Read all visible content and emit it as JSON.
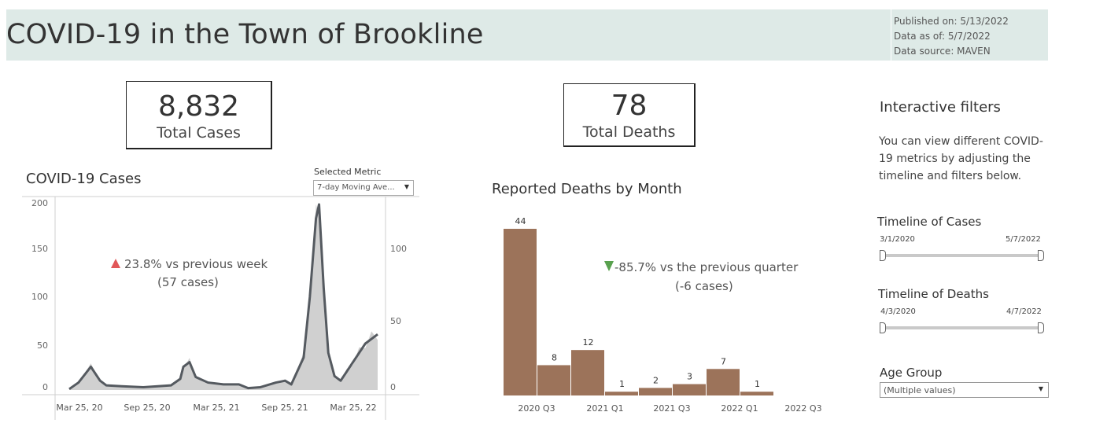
{
  "header": {
    "title": "COVID-19 in the Town of Brookline",
    "published": "Published  on:  5/13/2022",
    "data_as_of": "Data as of: 5/7/2022",
    "data_source": "Data source: MAVEN"
  },
  "kpis": {
    "cases_value": "8,832",
    "cases_label": "Total Cases",
    "deaths_value": "78",
    "deaths_label": "Total Deaths"
  },
  "cases_section": {
    "title": "COVID-19 Cases",
    "metric_label": "Selected Metric",
    "metric_value": "7-day Moving Ave...",
    "annotation_line1": "23.8% vs previous week",
    "annotation_line2": "(57 cases)",
    "annotation_color": "#e15759",
    "left_ticks": [
      "200",
      "150",
      "100",
      "50",
      "0"
    ],
    "right_ticks": [
      "100",
      "50",
      "0"
    ],
    "x_ticks": [
      "Mar 25, 20",
      "Sep 25, 20",
      "Mar 25, 21",
      "Sep 25, 21",
      "Mar 25, 22"
    ]
  },
  "deaths_section": {
    "title": "Reported Deaths by Month",
    "annotation_line1": "-85.7%   vs the previous quarter",
    "annotation_line2": "(-6 cases)",
    "annotation_color": "#59a14f",
    "x_ticks": [
      "2020 Q3",
      "2021 Q1",
      "2021 Q3",
      "2022 Q1",
      "2022 Q3"
    ]
  },
  "filters": {
    "title": "Interactive filters",
    "description": "You can view different COVID-19 metrics by adjusting the timeline and filters below.",
    "cases_timeline": {
      "label": "Timeline of Cases",
      "start": "3/1/2020",
      "end": "5/7/2022"
    },
    "deaths_timeline": {
      "label": "Timeline of Deaths",
      "start": "4/3/2020",
      "end": "4/7/2022"
    },
    "age_group": {
      "label": "Age Group",
      "value": "(Multiple values)"
    }
  },
  "colors": {
    "header_bg": "#deeae7",
    "bar_color": "#9c735a",
    "line_color": "#555a60",
    "area_color": "#d0d0d0"
  },
  "chart_data": [
    {
      "type": "bar",
      "title": "Reported Deaths by Month",
      "categories": [
        "2020 Q3",
        "2021 Q1",
        "",
        "2021 Q3",
        "",
        "2022 Q1",
        "",
        "2022 Q3"
      ],
      "values": [
        44,
        8,
        12,
        1,
        2,
        3,
        7,
        1
      ],
      "data_labels": [
        "44",
        "8",
        "12",
        "1",
        "2",
        "3",
        "7",
        "1"
      ]
    },
    {
      "type": "area",
      "title": "COVID-19 Cases",
      "x_ticks": [
        "Mar 25, 20",
        "Sep 25, 20",
        "Mar 25, 21",
        "Sep 25, 21",
        "Mar 25, 22"
      ],
      "ylim": [
        0,
        200
      ],
      "y_ticks": [
        0,
        50,
        100,
        150,
        200
      ],
      "y2_ticks": [
        0,
        50,
        100
      ],
      "series": [
        {
          "x": [
            0,
            0.03,
            0.07,
            0.1,
            0.12,
            0.17,
            0.24,
            0.33,
            0.36,
            0.37,
            0.39,
            0.41,
            0.45,
            0.5,
            0.55,
            0.58,
            0.62,
            0.67,
            0.7,
            0.72,
            0.76,
            0.78,
            0.8,
            0.81,
            0.825,
            0.84,
            0.86,
            0.88,
            0.9,
            0.92,
            0.94,
            0.96,
            0.98,
            1.0
          ],
          "values": [
            1,
            8,
            25,
            10,
            5,
            4,
            3,
            5,
            12,
            25,
            30,
            14,
            8,
            6,
            6,
            2,
            3,
            8,
            10,
            6,
            35,
            100,
            185,
            210,
            110,
            40,
            15,
            10,
            20,
            30,
            40,
            50,
            55,
            60
          ]
        }
      ]
    }
  ]
}
